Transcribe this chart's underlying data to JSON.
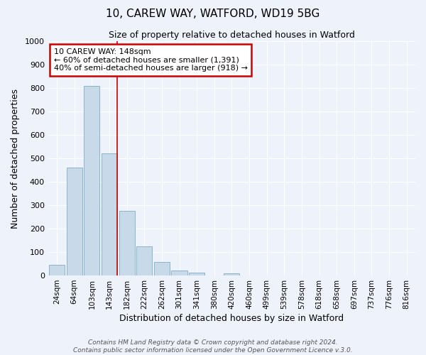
{
  "title": "10, CAREW WAY, WATFORD, WD19 5BG",
  "subtitle": "Size of property relative to detached houses in Watford",
  "xlabel": "Distribution of detached houses by size in Watford",
  "ylabel": "Number of detached properties",
  "bar_labels": [
    "24sqm",
    "64sqm",
    "103sqm",
    "143sqm",
    "182sqm",
    "222sqm",
    "262sqm",
    "301sqm",
    "341sqm",
    "380sqm",
    "420sqm",
    "460sqm",
    "499sqm",
    "539sqm",
    "578sqm",
    "618sqm",
    "658sqm",
    "697sqm",
    "737sqm",
    "776sqm",
    "816sqm"
  ],
  "bar_values": [
    47,
    460,
    810,
    520,
    275,
    125,
    57,
    22,
    13,
    0,
    8,
    0,
    0,
    0,
    0,
    0,
    0,
    0,
    0,
    0,
    0
  ],
  "bar_color": "#c8daea",
  "bar_edge_color": "#8ab4cc",
  "annotation_title": "10 CAREW WAY: 148sqm",
  "annotation_line1": "← 60% of detached houses are smaller (1,391)",
  "annotation_line2": "40% of semi-detached houses are larger (918) →",
  "annotation_box_color": "#ffffff",
  "annotation_box_edge": "#cc0000",
  "property_line_color": "#cc0000",
  "ylim": [
    0,
    1000
  ],
  "yticks": [
    0,
    100,
    200,
    300,
    400,
    500,
    600,
    700,
    800,
    900,
    1000
  ],
  "footer1": "Contains HM Land Registry data © Crown copyright and database right 2024.",
  "footer2": "Contains public sector information licensed under the Open Government Licence v.3.0.",
  "background_color": "#eef2fa",
  "grid_color": "#ffffff"
}
